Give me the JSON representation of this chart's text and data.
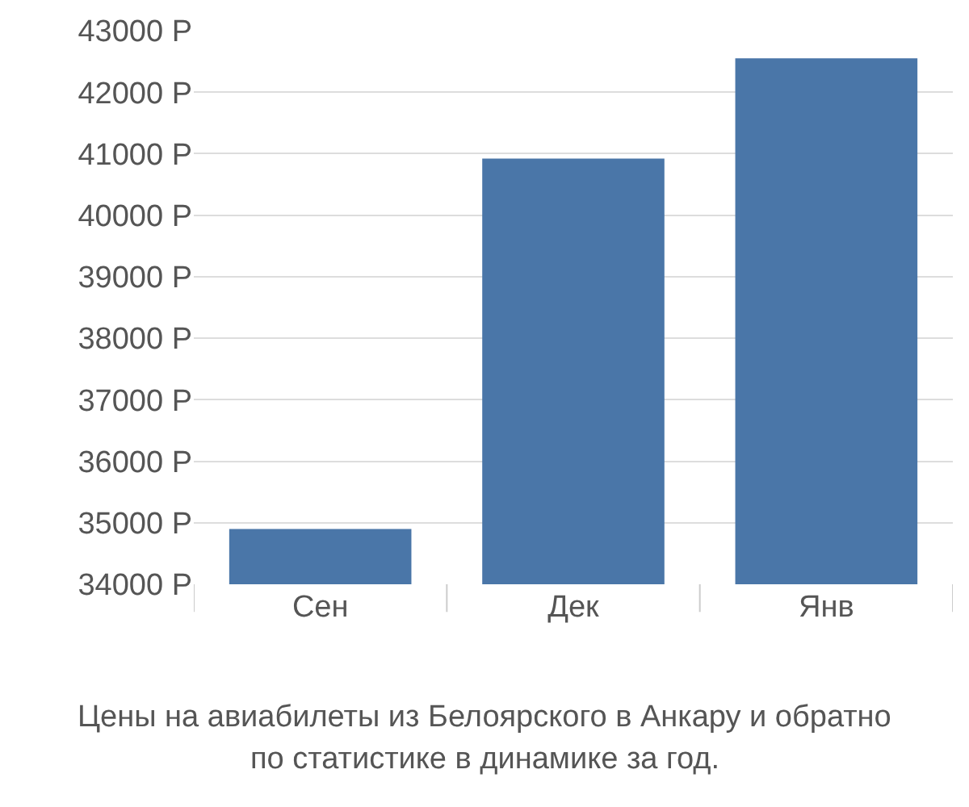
{
  "chart_data": {
    "type": "bar",
    "categories": [
      "Сен",
      "Дек",
      "Янв"
    ],
    "values": [
      34900,
      40920,
      42550
    ],
    "color": "#4a76a8",
    "ylim": [
      34000,
      43000
    ],
    "yticks": [
      {
        "value": 34000,
        "label": "34000 Р"
      },
      {
        "value": 35000,
        "label": "35000 Р"
      },
      {
        "value": 36000,
        "label": "36000 Р"
      },
      {
        "value": 37000,
        "label": "37000 Р"
      },
      {
        "value": 38000,
        "label": "38000 Р"
      },
      {
        "value": 39000,
        "label": "39000 Р"
      },
      {
        "value": 40000,
        "label": "40000 Р"
      },
      {
        "value": 41000,
        "label": "41000 Р"
      },
      {
        "value": 42000,
        "label": "42000 Р"
      },
      {
        "value": 43000,
        "label": "43000 Р"
      }
    ],
    "grid": "y",
    "annotations": [
      "Цены на авиабилеты из Белоярского в Анкару и обратно",
      "по статистике в динамике за год."
    ]
  }
}
